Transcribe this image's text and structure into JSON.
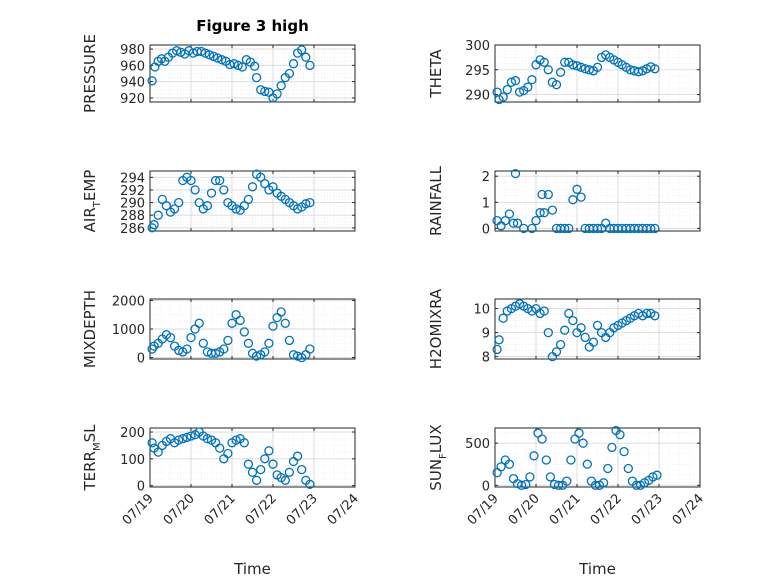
{
  "chart_data": [
    {
      "type": "scatter",
      "title": "Figure 3 high",
      "ylabel": "PRESSURE",
      "xlabel": "",
      "xlim": [
        0,
        5
      ],
      "ylim": [
        915,
        985
      ],
      "yticks": [
        920,
        940,
        960,
        980
      ],
      "yticklabels": [
        "920",
        "940",
        "960",
        "980"
      ],
      "series": [
        {
          "x": [
            0.05,
            0.12,
            0.2,
            0.28,
            0.36,
            0.45,
            0.55,
            0.65,
            0.75,
            0.85,
            0.95,
            1.05,
            1.15,
            1.25,
            1.35,
            1.45,
            1.55,
            1.65,
            1.75,
            1.85,
            1.95,
            2.05,
            2.15,
            2.25,
            2.35,
            2.45,
            2.55,
            2.6,
            2.7,
            2.8,
            2.9,
            3.0,
            3.1,
            3.2,
            3.3,
            3.4,
            3.5,
            3.6,
            3.7,
            3.8,
            3.9
          ],
          "y": [
            941,
            958,
            965,
            968,
            965,
            970,
            975,
            978,
            976,
            974,
            978,
            975,
            977,
            977,
            975,
            973,
            971,
            969,
            967,
            965,
            961,
            962,
            960,
            958,
            967,
            964,
            959,
            945,
            930,
            928,
            927,
            920,
            925,
            935,
            945,
            950,
            962,
            975,
            979,
            970,
            960
          ]
        }
      ]
    },
    {
      "type": "scatter",
      "title": "",
      "ylabel": "THETA",
      "xlabel": "",
      "xlim": [
        0,
        5
      ],
      "ylim": [
        288.5,
        300
      ],
      "yticks": [
        290,
        295,
        300
      ],
      "yticklabels": [
        "290",
        "295",
        "300"
      ],
      "series": [
        {
          "x": [
            0.05,
            0.1,
            0.2,
            0.3,
            0.4,
            0.5,
            0.6,
            0.7,
            0.8,
            0.9,
            1.0,
            1.1,
            1.2,
            1.3,
            1.4,
            1.5,
            1.6,
            1.7,
            1.8,
            1.9,
            2.0,
            2.1,
            2.2,
            2.3,
            2.4,
            2.5,
            2.6,
            2.7,
            2.8,
            2.9,
            3.0,
            3.1,
            3.2,
            3.3,
            3.4,
            3.5,
            3.6,
            3.7,
            3.8,
            3.9
          ],
          "y": [
            290.5,
            289,
            289.5,
            291,
            292.5,
            292.8,
            290.5,
            290.8,
            291.5,
            293,
            296,
            297,
            296.5,
            295,
            292.5,
            292,
            294.5,
            296.5,
            296.5,
            296,
            295.8,
            295.5,
            295.2,
            295,
            294.8,
            295.5,
            297.5,
            298,
            297.5,
            297,
            296.5,
            296,
            295.5,
            295,
            294.8,
            294.6,
            294.8,
            295.2,
            295.6,
            295.2
          ]
        }
      ]
    },
    {
      "type": "scatter",
      "title": "",
      "ylabel": "AIR_TEMP",
      "xlabel": "",
      "xlim": [
        0,
        5
      ],
      "ylim": [
        285.5,
        295
      ],
      "yticks": [
        286,
        288,
        290,
        292,
        294
      ],
      "yticklabels": [
        "286",
        "288",
        "290",
        "292",
        "294"
      ],
      "series": [
        {
          "x": [
            0.05,
            0.1,
            0.2,
            0.3,
            0.4,
            0.5,
            0.6,
            0.7,
            0.8,
            0.9,
            1.0,
            1.1,
            1.2,
            1.3,
            1.4,
            1.5,
            1.6,
            1.7,
            1.8,
            1.9,
            2.0,
            2.1,
            2.2,
            2.3,
            2.4,
            2.5,
            2.6,
            2.7,
            2.8,
            2.9,
            3.0,
            3.1,
            3.2,
            3.3,
            3.4,
            3.5,
            3.6,
            3.7,
            3.8,
            3.9
          ],
          "y": [
            286,
            286.5,
            288,
            290.5,
            289.5,
            288.5,
            289,
            290,
            293.5,
            294,
            293.5,
            292,
            290,
            289,
            289.5,
            291.5,
            293.5,
            293.5,
            292,
            290,
            289.5,
            289,
            288.8,
            289.5,
            290.5,
            292.5,
            294.5,
            294,
            293,
            292,
            292.5,
            291.5,
            291,
            290.5,
            290,
            289.5,
            289,
            289.3,
            289.8,
            290
          ]
        }
      ]
    },
    {
      "type": "scatter",
      "title": "",
      "ylabel": "RAINFALL",
      "xlabel": "",
      "xlim": [
        0,
        5
      ],
      "ylim": [
        -0.1,
        2.2
      ],
      "yticks": [
        0,
        1,
        2
      ],
      "yticklabels": [
        "0",
        "1",
        "2"
      ],
      "series": [
        {
          "x": [
            0.05,
            0.15,
            0.25,
            0.35,
            0.45,
            0.5,
            0.55,
            0.7,
            0.9,
            1.0,
            1.1,
            1.15,
            1.2,
            1.3,
            1.4,
            1.5,
            1.6,
            1.7,
            1.8,
            1.9,
            2.0,
            2.1,
            2.2,
            2.3,
            2.4,
            2.5,
            2.6,
            2.7,
            2.8,
            2.9,
            3.0,
            3.1,
            3.2,
            3.3,
            3.4,
            3.5,
            3.6,
            3.7,
            3.8,
            3.9
          ],
          "y": [
            0.3,
            0.1,
            0.3,
            0.55,
            0.2,
            2.1,
            0.2,
            0,
            0,
            0.3,
            0.6,
            1.3,
            0.6,
            1.3,
            0.7,
            0,
            0,
            0,
            0,
            1.1,
            1.5,
            1.2,
            0,
            0,
            0,
            0,
            0,
            0.2,
            0,
            0,
            0,
            0,
            0,
            0,
            0,
            0,
            0,
            0,
            0,
            0
          ]
        }
      ]
    },
    {
      "type": "scatter",
      "title": "",
      "ylabel": "MIXDEPTH",
      "xlabel": "",
      "xlim": [
        0,
        5
      ],
      "ylim": [
        -50,
        2050
      ],
      "yticks": [
        0,
        1000,
        2000
      ],
      "yticklabels": [
        "0",
        "1000",
        "2000"
      ],
      "series": [
        {
          "x": [
            0.05,
            0.1,
            0.2,
            0.3,
            0.4,
            0.5,
            0.6,
            0.7,
            0.8,
            0.9,
            1.0,
            1.1,
            1.2,
            1.3,
            1.4,
            1.5,
            1.6,
            1.7,
            1.8,
            1.9,
            2.0,
            2.1,
            2.2,
            2.3,
            2.4,
            2.5,
            2.6,
            2.7,
            2.8,
            2.9,
            3.0,
            3.1,
            3.2,
            3.3,
            3.4,
            3.5,
            3.6,
            3.7,
            3.8,
            3.9
          ],
          "y": [
            300,
            400,
            500,
            650,
            800,
            700,
            400,
            250,
            200,
            300,
            700,
            1000,
            1200,
            500,
            200,
            150,
            150,
            200,
            300,
            600,
            1200,
            1500,
            1300,
            900,
            500,
            150,
            50,
            100,
            200,
            500,
            1100,
            1400,
            1600,
            1200,
            600,
            100,
            50,
            0,
            100,
            300
          ]
        }
      ]
    },
    {
      "type": "scatter",
      "title": "",
      "ylabel": "H2OMIXRA",
      "xlabel": "",
      "xlim": [
        0,
        5
      ],
      "ylim": [
        7.9,
        10.4
      ],
      "yticks": [
        8,
        9,
        10
      ],
      "yticklabels": [
        "8",
        "9",
        "10"
      ],
      "series": [
        {
          "x": [
            0.05,
            0.1,
            0.2,
            0.3,
            0.4,
            0.5,
            0.6,
            0.7,
            0.8,
            0.9,
            1.0,
            1.1,
            1.2,
            1.3,
            1.4,
            1.5,
            1.6,
            1.7,
            1.8,
            1.9,
            2.0,
            2.1,
            2.2,
            2.3,
            2.4,
            2.5,
            2.6,
            2.7,
            2.8,
            2.9,
            3.0,
            3.1,
            3.2,
            3.3,
            3.4,
            3.5,
            3.6,
            3.7,
            3.8,
            3.9
          ],
          "y": [
            8.3,
            8.7,
            9.6,
            9.9,
            10,
            10.1,
            10.2,
            10.1,
            10.0,
            9.9,
            10.0,
            9.8,
            9.9,
            9.0,
            8.0,
            8.2,
            8.5,
            9.1,
            9.8,
            9.5,
            9.0,
            9.2,
            8.8,
            8.4,
            8.6,
            9.3,
            9.0,
            8.8,
            9.0,
            9.2,
            9.3,
            9.4,
            9.5,
            9.6,
            9.7,
            9.8,
            9.7,
            9.8,
            9.8,
            9.7
          ]
        }
      ]
    },
    {
      "type": "scatter",
      "title": "",
      "ylabel": "TERR_MSL",
      "xlabel": "Time",
      "xlim": [
        0,
        5
      ],
      "ylim": [
        -5,
        215
      ],
      "yticks": [
        0,
        100,
        200
      ],
      "yticklabels": [
        "0",
        "100",
        "200"
      ],
      "xticks": [
        0,
        1,
        2,
        3,
        4,
        5
      ],
      "xticklabels": [
        "07/19",
        "07/20",
        "07/21",
        "07/22",
        "07/23",
        "07/24"
      ],
      "series": [
        {
          "x": [
            0.05,
            0.1,
            0.2,
            0.3,
            0.4,
            0.5,
            0.6,
            0.7,
            0.8,
            0.9,
            1.0,
            1.1,
            1.2,
            1.3,
            1.4,
            1.5,
            1.6,
            1.7,
            1.8,
            1.9,
            2.0,
            2.1,
            2.2,
            2.3,
            2.4,
            2.5,
            2.6,
            2.7,
            2.8,
            2.9,
            3.0,
            3.1,
            3.2,
            3.3,
            3.4,
            3.5,
            3.6,
            3.7,
            3.8,
            3.9
          ],
          "y": [
            160,
            140,
            125,
            150,
            165,
            175,
            160,
            170,
            175,
            180,
            185,
            190,
            200,
            185,
            175,
            170,
            160,
            140,
            100,
            120,
            160,
            170,
            175,
            160,
            80,
            50,
            20,
            60,
            100,
            130,
            80,
            40,
            30,
            20,
            50,
            90,
            110,
            60,
            20,
            5
          ]
        }
      ]
    },
    {
      "type": "scatter",
      "title": "",
      "ylabel": "SUN_FLUX",
      "xlabel": "Time",
      "xlim": [
        0,
        5
      ],
      "ylim": [
        -20,
        680
      ],
      "yticks": [
        0,
        500
      ],
      "yticklabels": [
        "0",
        "500"
      ],
      "xticks": [
        0,
        1,
        2,
        3,
        4,
        5
      ],
      "xticklabels": [
        "07/19",
        "07/20",
        "07/21",
        "07/22",
        "07/23",
        "07/24"
      ],
      "series": [
        {
          "x": [
            0.05,
            0.15,
            0.25,
            0.35,
            0.45,
            0.55,
            0.65,
            0.75,
            0.85,
            0.95,
            1.05,
            1.15,
            1.25,
            1.35,
            1.45,
            1.55,
            1.65,
            1.75,
            1.85,
            1.95,
            2.05,
            2.15,
            2.25,
            2.35,
            2.45,
            2.55,
            2.65,
            2.75,
            2.85,
            2.95,
            3.05,
            3.15,
            3.25,
            3.35,
            3.45,
            3.55,
            3.65,
            3.75,
            3.85,
            3.95
          ],
          "y": [
            150,
            220,
            300,
            250,
            80,
            20,
            0,
            10,
            100,
            350,
            620,
            550,
            300,
            100,
            10,
            0,
            0,
            50,
            300,
            550,
            620,
            500,
            250,
            50,
            0,
            0,
            30,
            200,
            450,
            650,
            600,
            400,
            200,
            50,
            0,
            0,
            30,
            60,
            100,
            120
          ]
        }
      ]
    }
  ]
}
